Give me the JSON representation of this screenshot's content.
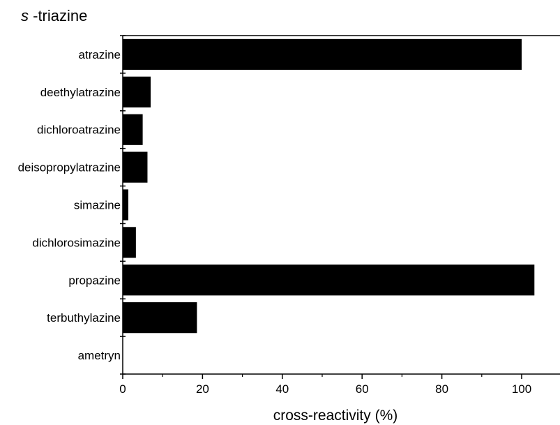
{
  "chart_data": {
    "type": "bar",
    "orientation": "horizontal",
    "title_italic": "s",
    "title_rest": " -triazine",
    "xlabel": "cross-reactivity (%)",
    "ylabel": "",
    "categories": [
      "atrazine",
      "deethylatrazine",
      "dichloroatrazine",
      "deisopropylatrazine",
      "simazine",
      "dichlorosimazine",
      "propazine",
      "terbuthylazine",
      "ametryn"
    ],
    "values": [
      100,
      7,
      5,
      6.2,
      1.4,
      3.3,
      103.2,
      18.6,
      0
    ],
    "xlim": [
      0,
      110
    ],
    "xticks": [
      0,
      20,
      40,
      60,
      80,
      100
    ],
    "bar_color": "#000000",
    "grid": false,
    "legend": "none"
  }
}
